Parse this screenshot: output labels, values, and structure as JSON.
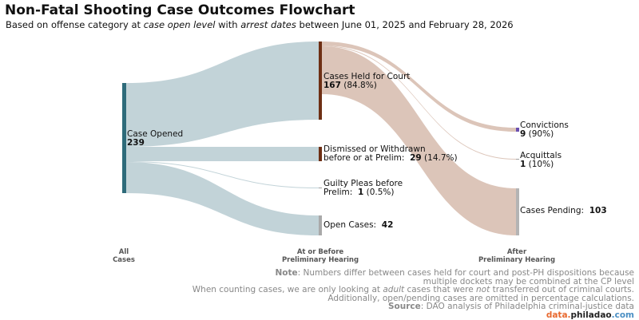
{
  "title": "Non-Fatal Shooting Case Outcomes Flowchart",
  "subtitle": {
    "p1": "Based on offense category at ",
    "em1": "case open level",
    "p2": " with ",
    "em2": "arrest dates",
    "p3": " between June 01, 2025 and February 28, 2026"
  },
  "nodes": {
    "opened": {
      "label": "Case Opened",
      "count": "239"
    },
    "held": {
      "label": "Cases Held for Court",
      "count": "167",
      "pct": "(84.8%)"
    },
    "dismissed": {
      "line1": "Dismissed or Withdrawn",
      "line2": "before or at Prelim:",
      "count": "29",
      "pct": "(14.7%)"
    },
    "pleas": {
      "line1": "Guilty Pleas before",
      "line2": "Prelim:",
      "count": "1",
      "pct": "(0.5%)"
    },
    "open": {
      "label": "Open Cases:",
      "count": "42"
    },
    "convictions": {
      "label": "Convictions",
      "count": "9",
      "pct": "(90%)"
    },
    "acquittals": {
      "label": "Acquittals",
      "count": "1",
      "pct": "(10%)"
    },
    "pending": {
      "label": "Cases Pending:",
      "count": "103"
    }
  },
  "columns": {
    "all": {
      "line1": "All",
      "line2": "Cases"
    },
    "prelim": {
      "line1": "At or Before",
      "line2": "Preliminary Hearing"
    },
    "after": {
      "line1": "After",
      "line2": "Preliminary Hearing"
    }
  },
  "note": {
    "label": "Note",
    "line1": ": Numbers differ between cases held for court and post-PH dispositions because",
    "line2": "multiple dockets may be combined at the CP level",
    "line3a": "When counting cases, we are only looking at ",
    "line3em1": "adult",
    "line3b": " cases that were ",
    "line3em2": "not",
    "line3c": " transferred out of criminal courts.",
    "line4": "Additionally, open/pending cases are omitted in percentage calculations.",
    "source_label": "Source",
    "source_text": ": DAO analysis of Philadelphia criminal-justice data"
  },
  "brand": {
    "part1": "data.",
    "part2": "philadao",
    "part3": ".com"
  },
  "colors": {
    "flow_stage1": "#c2d3d8",
    "flow_stage2": "#dcc5b9",
    "node_opened": "#2e6b7a",
    "node_held": "#6e2f14",
    "node_dismissed": "#6e2f14",
    "node_pleas": "#9e9e9e",
    "node_open": "#a9a9a9",
    "node_convictions": "#6a4fb0",
    "node_pending": "#b4b4b4"
  }
}
